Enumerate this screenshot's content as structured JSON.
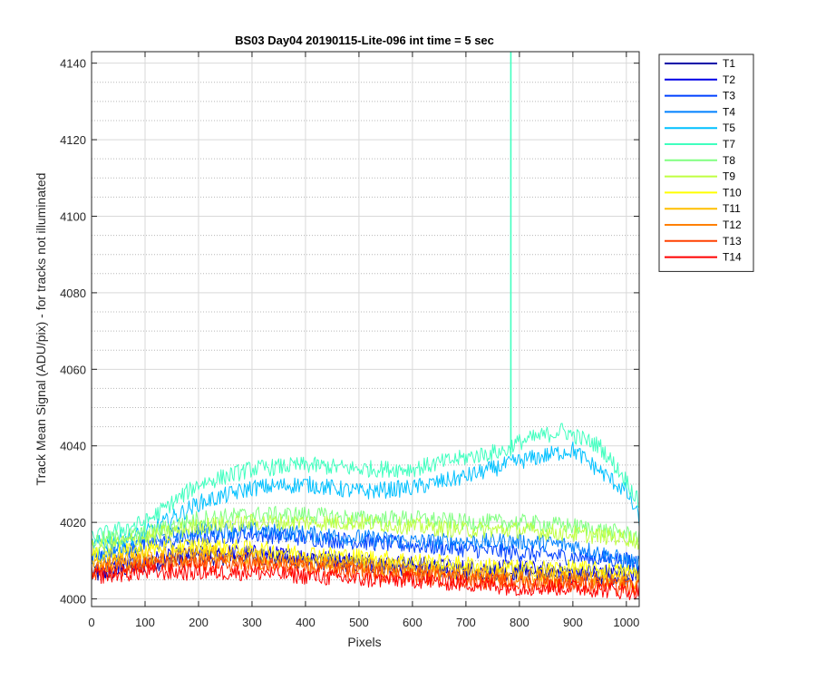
{
  "chart_data": {
    "type": "line",
    "title": "BS03 Day04 20190115-Lite-096 int time = 5 sec",
    "xlabel": "Pixels",
    "ylabel": "Track Mean Signal (ADU/pix) - for tracks not illuminated",
    "xlim": [
      0,
      1024
    ],
    "ylim": [
      3998,
      4143
    ],
    "xticks": [
      0,
      100,
      200,
      300,
      400,
      500,
      600,
      700,
      800,
      900,
      1000
    ],
    "yticks": [
      4000,
      4020,
      4040,
      4060,
      4080,
      4100,
      4120,
      4140
    ],
    "grid": "on, major solid and minor dotted",
    "legend_position": "outside-top-right",
    "series": [
      {
        "name": "T1",
        "color": "#0000a8",
        "x": [
          0,
          100,
          200,
          300,
          400,
          500,
          600,
          700,
          800,
          900,
          1000,
          1024
        ],
        "y": [
          4006,
          4009,
          4011,
          4011,
          4010,
          4009,
          4008,
          4007,
          4007,
          4006,
          4006,
          4006
        ]
      },
      {
        "name": "T2",
        "color": "#0000e6",
        "x": [
          0,
          100,
          200,
          300,
          400,
          500,
          600,
          700,
          800,
          900,
          1000,
          1024
        ],
        "y": [
          4007,
          4010,
          4012,
          4012,
          4011,
          4010,
          4009,
          4008,
          4008,
          4007,
          4007,
          4007
        ]
      },
      {
        "name": "T3",
        "color": "#0040ff",
        "x": [
          0,
          100,
          200,
          300,
          400,
          500,
          600,
          700,
          800,
          900,
          1000,
          1024
        ],
        "y": [
          4010,
          4014,
          4016,
          4017,
          4016,
          4015,
          4014,
          4013,
          4012,
          4011,
          4010,
          4010
        ]
      },
      {
        "name": "T4",
        "color": "#0080ff",
        "x": [
          0,
          100,
          200,
          300,
          400,
          500,
          600,
          700,
          800,
          900,
          1000,
          1024
        ],
        "y": [
          4011,
          4015,
          4018,
          4018,
          4017,
          4016,
          4015,
          4015,
          4015,
          4014,
          4010,
          4009
        ]
      },
      {
        "name": "T5",
        "color": "#00c0ff",
        "x": [
          0,
          100,
          200,
          300,
          400,
          500,
          600,
          700,
          800,
          900,
          1000,
          1024
        ],
        "y": [
          4014,
          4017,
          4025,
          4029,
          4030,
          4028,
          4029,
          4032,
          4036,
          4039,
          4028,
          4021
        ]
      },
      {
        "name": "T7",
        "color": "#40ffbf",
        "x": [
          0,
          100,
          200,
          300,
          400,
          500,
          600,
          700,
          783,
          784,
          785,
          800,
          880,
          950,
          1000,
          1024
        ],
        "y": [
          4016,
          4020,
          4030,
          4034,
          4035,
          4034,
          4034,
          4037,
          4039,
          4143,
          4040,
          4041,
          4044,
          4040,
          4031,
          4025
        ]
      },
      {
        "name": "T8",
        "color": "#80ff80",
        "x": [
          0,
          100,
          200,
          300,
          400,
          500,
          600,
          700,
          800,
          900,
          1000,
          1024
        ],
        "y": [
          4015,
          4017,
          4021,
          4022,
          4022,
          4021,
          4021,
          4020,
          4020,
          4019,
          4017,
          4016
        ]
      },
      {
        "name": "T9",
        "color": "#bfff40",
        "x": [
          0,
          100,
          200,
          300,
          400,
          500,
          600,
          700,
          800,
          900,
          1000,
          1024
        ],
        "y": [
          4013,
          4016,
          4019,
          4020,
          4020,
          4020,
          4019,
          4018,
          4018,
          4017,
          4016,
          4015
        ]
      },
      {
        "name": "T10",
        "color": "#ffff00",
        "x": [
          0,
          100,
          200,
          300,
          400,
          500,
          600,
          700,
          800,
          900,
          1000,
          1024
        ],
        "y": [
          4011,
          4013,
          4014,
          4013,
          4012,
          4011,
          4010,
          4009,
          4008,
          4008,
          4007,
          4007
        ]
      },
      {
        "name": "T11",
        "color": "#ffbf00",
        "x": [
          0,
          100,
          200,
          300,
          400,
          500,
          600,
          700,
          800,
          900,
          1000,
          1024
        ],
        "y": [
          4009,
          4011,
          4012,
          4011,
          4010,
          4009,
          4008,
          4007,
          4006,
          4006,
          4005,
          4005
        ]
      },
      {
        "name": "T12",
        "color": "#ff8000",
        "x": [
          0,
          100,
          200,
          300,
          400,
          500,
          600,
          700,
          800,
          900,
          1000,
          1024
        ],
        "y": [
          4008,
          4010,
          4010,
          4010,
          4009,
          4008,
          4007,
          4006,
          4005,
          4005,
          4004,
          4004
        ]
      },
      {
        "name": "T13",
        "color": "#ff4000",
        "x": [
          0,
          100,
          200,
          300,
          400,
          500,
          600,
          700,
          800,
          900,
          1000,
          1024
        ],
        "y": [
          4007,
          4009,
          4009,
          4009,
          4008,
          4007,
          4006,
          4005,
          4004,
          4004,
          4003,
          4003
        ]
      },
      {
        "name": "T14",
        "color": "#ff0000",
        "x": [
          0,
          100,
          200,
          300,
          400,
          500,
          600,
          700,
          800,
          900,
          1000,
          1024
        ],
        "y": [
          4006,
          4007,
          4007,
          4007,
          4006,
          4005,
          4005,
          4004,
          4003,
          4003,
          4002,
          4002
        ]
      }
    ]
  }
}
